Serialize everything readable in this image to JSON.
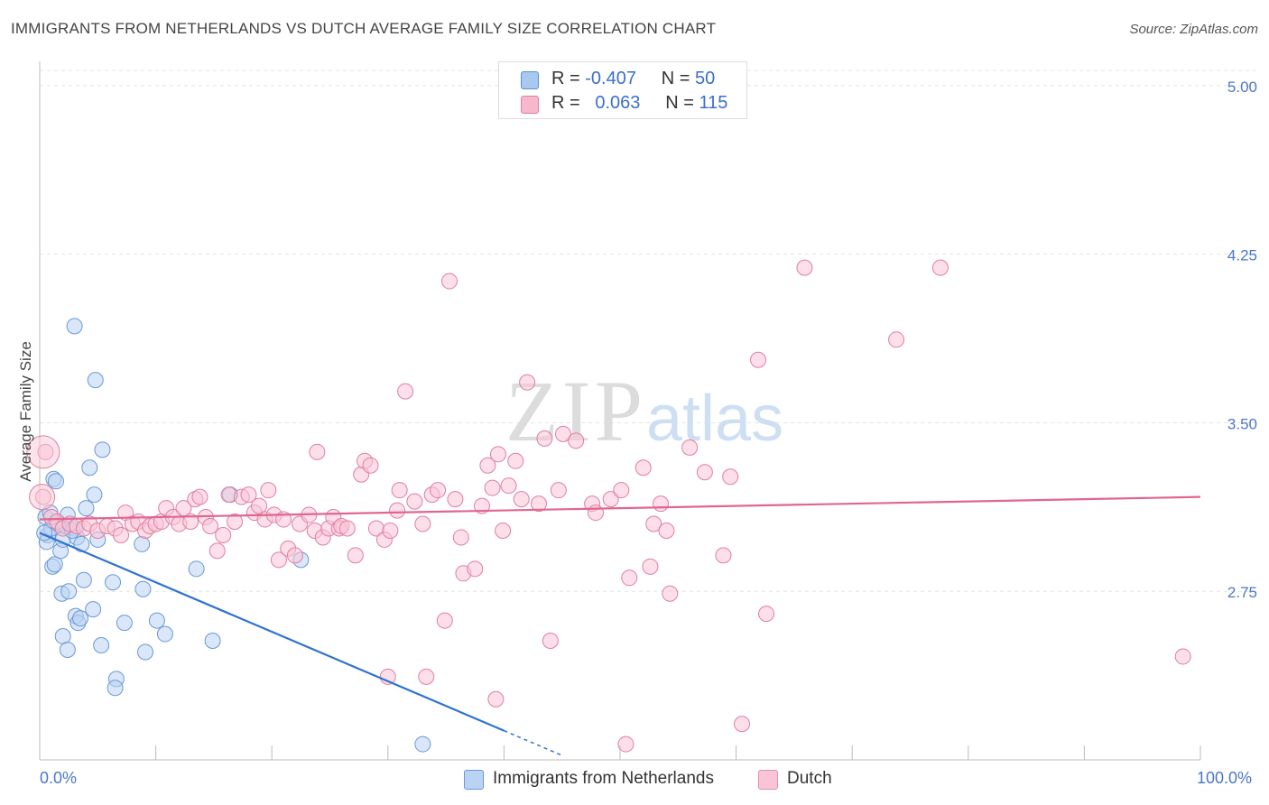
{
  "title": "IMMIGRANTS FROM NETHERLANDS VS DUTCH AVERAGE FAMILY SIZE CORRELATION CHART",
  "source": "Source: ZipAtlas.com",
  "watermark": {
    "zip": "ZIP",
    "atlas": "atlas"
  },
  "legend": {
    "rows": [
      {
        "r_label": "R =",
        "r_value": "-0.407",
        "n_label": "N =",
        "n_value": "50",
        "color": "#a9c8f0",
        "border": "#5b8fd6"
      },
      {
        "r_label": "R =",
        "r_value": "0.063",
        "n_label": "N =",
        "n_value": "115",
        "color": "#f7b8cc",
        "border": "#e07fa0"
      }
    ]
  },
  "bottom_legend": [
    {
      "label": "Immigrants from Netherlands",
      "color": "#b9d3f3",
      "border": "#6a98d8"
    },
    {
      "label": "Dutch",
      "color": "#f9c5d6",
      "border": "#e58fae"
    }
  ],
  "chart_data": {
    "type": "scatter",
    "ylabel": "Average Family Size",
    "xlim": [
      0,
      100
    ],
    "ylim": [
      2.0,
      5.1
    ],
    "y_ticks": [
      2.75,
      3.5,
      4.25,
      5.0
    ],
    "y_tick_labels": [
      "2.75",
      "3.50",
      "4.25",
      "5.00"
    ],
    "x_tick_labels": [
      "0.0%",
      "100.0%"
    ],
    "grid": true,
    "series": [
      {
        "name": "Immigrants from Netherlands",
        "color": "#6a98d8",
        "fill": "#b9d3f3",
        "trend": {
          "x0": 0,
          "y0": 3.01,
          "x1": 40,
          "y1": 2.13,
          "dash_to_x": 45,
          "dash_to_y": 2.02
        },
        "points": [
          [
            0.5,
            3.08
          ],
          [
            0.7,
            3.0
          ],
          [
            0.6,
            2.97
          ],
          [
            1.0,
            3.03
          ],
          [
            1.2,
            3.25
          ],
          [
            1.4,
            3.24
          ],
          [
            1.1,
            2.86
          ],
          [
            1.3,
            2.87
          ],
          [
            1.8,
            2.93
          ],
          [
            2.0,
            2.98
          ],
          [
            2.2,
            3.04
          ],
          [
            2.4,
            3.09
          ],
          [
            1.9,
            2.74
          ],
          [
            2.5,
            2.75
          ],
          [
            2.0,
            2.55
          ],
          [
            2.4,
            2.49
          ],
          [
            3.0,
            3.03
          ],
          [
            3.2,
            2.99
          ],
          [
            3.1,
            2.64
          ],
          [
            3.3,
            2.61
          ],
          [
            3.5,
            2.63
          ],
          [
            3.8,
            2.8
          ],
          [
            4.0,
            3.12
          ],
          [
            4.3,
            3.3
          ],
          [
            4.6,
            2.67
          ],
          [
            4.7,
            3.18
          ],
          [
            4.8,
            3.69
          ],
          [
            3.0,
            3.93
          ],
          [
            5.4,
            3.38
          ],
          [
            5.3,
            2.51
          ],
          [
            6.3,
            2.79
          ],
          [
            6.6,
            2.36
          ],
          [
            6.5,
            2.32
          ],
          [
            7.3,
            2.61
          ],
          [
            8.8,
            2.96
          ],
          [
            8.9,
            2.76
          ],
          [
            9.1,
            2.48
          ],
          [
            10.1,
            2.62
          ],
          [
            10.8,
            2.56
          ],
          [
            13.5,
            2.85
          ],
          [
            14.9,
            2.53
          ],
          [
            16.4,
            3.18
          ],
          [
            22.5,
            2.89
          ],
          [
            33.0,
            2.07
          ],
          [
            0.4,
            3.01
          ],
          [
            1.6,
            3.05
          ],
          [
            2.8,
            3.02
          ],
          [
            0.9,
            3.1
          ],
          [
            5.0,
            2.98
          ],
          [
            3.6,
            2.96
          ]
        ]
      },
      {
        "name": "Dutch",
        "color": "#e07fa0",
        "fill": "#f9c5d6",
        "trend": {
          "x0": 0,
          "y0": 3.07,
          "x1": 100,
          "y1": 3.17
        },
        "points": [
          [
            0.5,
            3.37
          ],
          [
            0.3,
            3.17
          ],
          [
            1.0,
            3.08
          ],
          [
            1.5,
            3.06
          ],
          [
            2.0,
            3.03
          ],
          [
            2.6,
            3.05
          ],
          [
            3.2,
            3.04
          ],
          [
            3.8,
            3.03
          ],
          [
            4.3,
            3.05
          ],
          [
            5.0,
            3.02
          ],
          [
            5.8,
            3.04
          ],
          [
            6.5,
            3.03
          ],
          [
            7.0,
            3.0
          ],
          [
            7.4,
            3.1
          ],
          [
            8.0,
            3.05
          ],
          [
            8.5,
            3.06
          ],
          [
            9.1,
            3.02
          ],
          [
            9.5,
            3.04
          ],
          [
            10.0,
            3.05
          ],
          [
            10.5,
            3.06
          ],
          [
            10.9,
            3.12
          ],
          [
            11.5,
            3.08
          ],
          [
            12.0,
            3.05
          ],
          [
            12.4,
            3.12
          ],
          [
            13.0,
            3.06
          ],
          [
            13.4,
            3.16
          ],
          [
            13.8,
            3.17
          ],
          [
            14.3,
            3.08
          ],
          [
            14.7,
            3.04
          ],
          [
            15.3,
            2.93
          ],
          [
            15.8,
            3.0
          ],
          [
            16.3,
            3.18
          ],
          [
            16.8,
            3.06
          ],
          [
            17.4,
            3.17
          ],
          [
            18.0,
            3.18
          ],
          [
            18.5,
            3.1
          ],
          [
            18.9,
            3.13
          ],
          [
            19.4,
            3.07
          ],
          [
            19.7,
            3.2
          ],
          [
            20.2,
            3.09
          ],
          [
            20.6,
            2.89
          ],
          [
            21.0,
            3.07
          ],
          [
            21.4,
            2.94
          ],
          [
            22.0,
            2.91
          ],
          [
            22.4,
            3.05
          ],
          [
            23.2,
            3.09
          ],
          [
            23.7,
            3.02
          ],
          [
            23.9,
            3.37
          ],
          [
            24.4,
            2.99
          ],
          [
            24.9,
            3.03
          ],
          [
            25.3,
            3.08
          ],
          [
            25.8,
            3.03
          ],
          [
            26.0,
            3.04
          ],
          [
            26.5,
            3.03
          ],
          [
            27.2,
            2.91
          ],
          [
            27.7,
            3.27
          ],
          [
            28.0,
            3.33
          ],
          [
            28.5,
            3.31
          ],
          [
            29.0,
            3.03
          ],
          [
            29.7,
            2.98
          ],
          [
            30.2,
            3.02
          ],
          [
            30.8,
            3.11
          ],
          [
            31.5,
            3.64
          ],
          [
            31.0,
            3.2
          ],
          [
            32.3,
            3.15
          ],
          [
            33.0,
            3.05
          ],
          [
            33.3,
            2.37
          ],
          [
            33.8,
            3.18
          ],
          [
            34.3,
            3.2
          ],
          [
            34.9,
            2.62
          ],
          [
            35.3,
            4.13
          ],
          [
            35.8,
            3.16
          ],
          [
            36.3,
            2.99
          ],
          [
            36.5,
            2.83
          ],
          [
            37.5,
            2.85
          ],
          [
            38.1,
            3.13
          ],
          [
            38.6,
            3.31
          ],
          [
            39.0,
            3.21
          ],
          [
            39.5,
            3.36
          ],
          [
            39.9,
            3.02
          ],
          [
            40.4,
            3.22
          ],
          [
            41.0,
            3.33
          ],
          [
            41.5,
            3.16
          ],
          [
            42.0,
            3.68
          ],
          [
            43.0,
            3.14
          ],
          [
            43.5,
            3.43
          ],
          [
            44.0,
            2.53
          ],
          [
            44.7,
            3.2
          ],
          [
            45.1,
            3.45
          ],
          [
            46.2,
            3.42
          ],
          [
            47.6,
            3.14
          ],
          [
            47.9,
            3.1
          ],
          [
            49.2,
            3.16
          ],
          [
            50.1,
            3.2
          ],
          [
            50.8,
            2.81
          ],
          [
            52.0,
            3.3
          ],
          [
            52.6,
            2.86
          ],
          [
            52.9,
            3.05
          ],
          [
            53.5,
            3.14
          ],
          [
            54.0,
            3.02
          ],
          [
            54.3,
            2.74
          ],
          [
            56.0,
            3.39
          ],
          [
            57.3,
            3.28
          ],
          [
            58.9,
            2.91
          ],
          [
            59.5,
            3.26
          ],
          [
            61.9,
            3.78
          ],
          [
            62.6,
            2.65
          ],
          [
            65.9,
            4.19
          ],
          [
            73.8,
            3.87
          ],
          [
            77.6,
            4.19
          ],
          [
            98.5,
            2.46
          ],
          [
            30.0,
            2.37
          ],
          [
            39.3,
            2.27
          ],
          [
            50.5,
            2.07
          ],
          [
            60.5,
            2.16
          ]
        ]
      }
    ]
  }
}
